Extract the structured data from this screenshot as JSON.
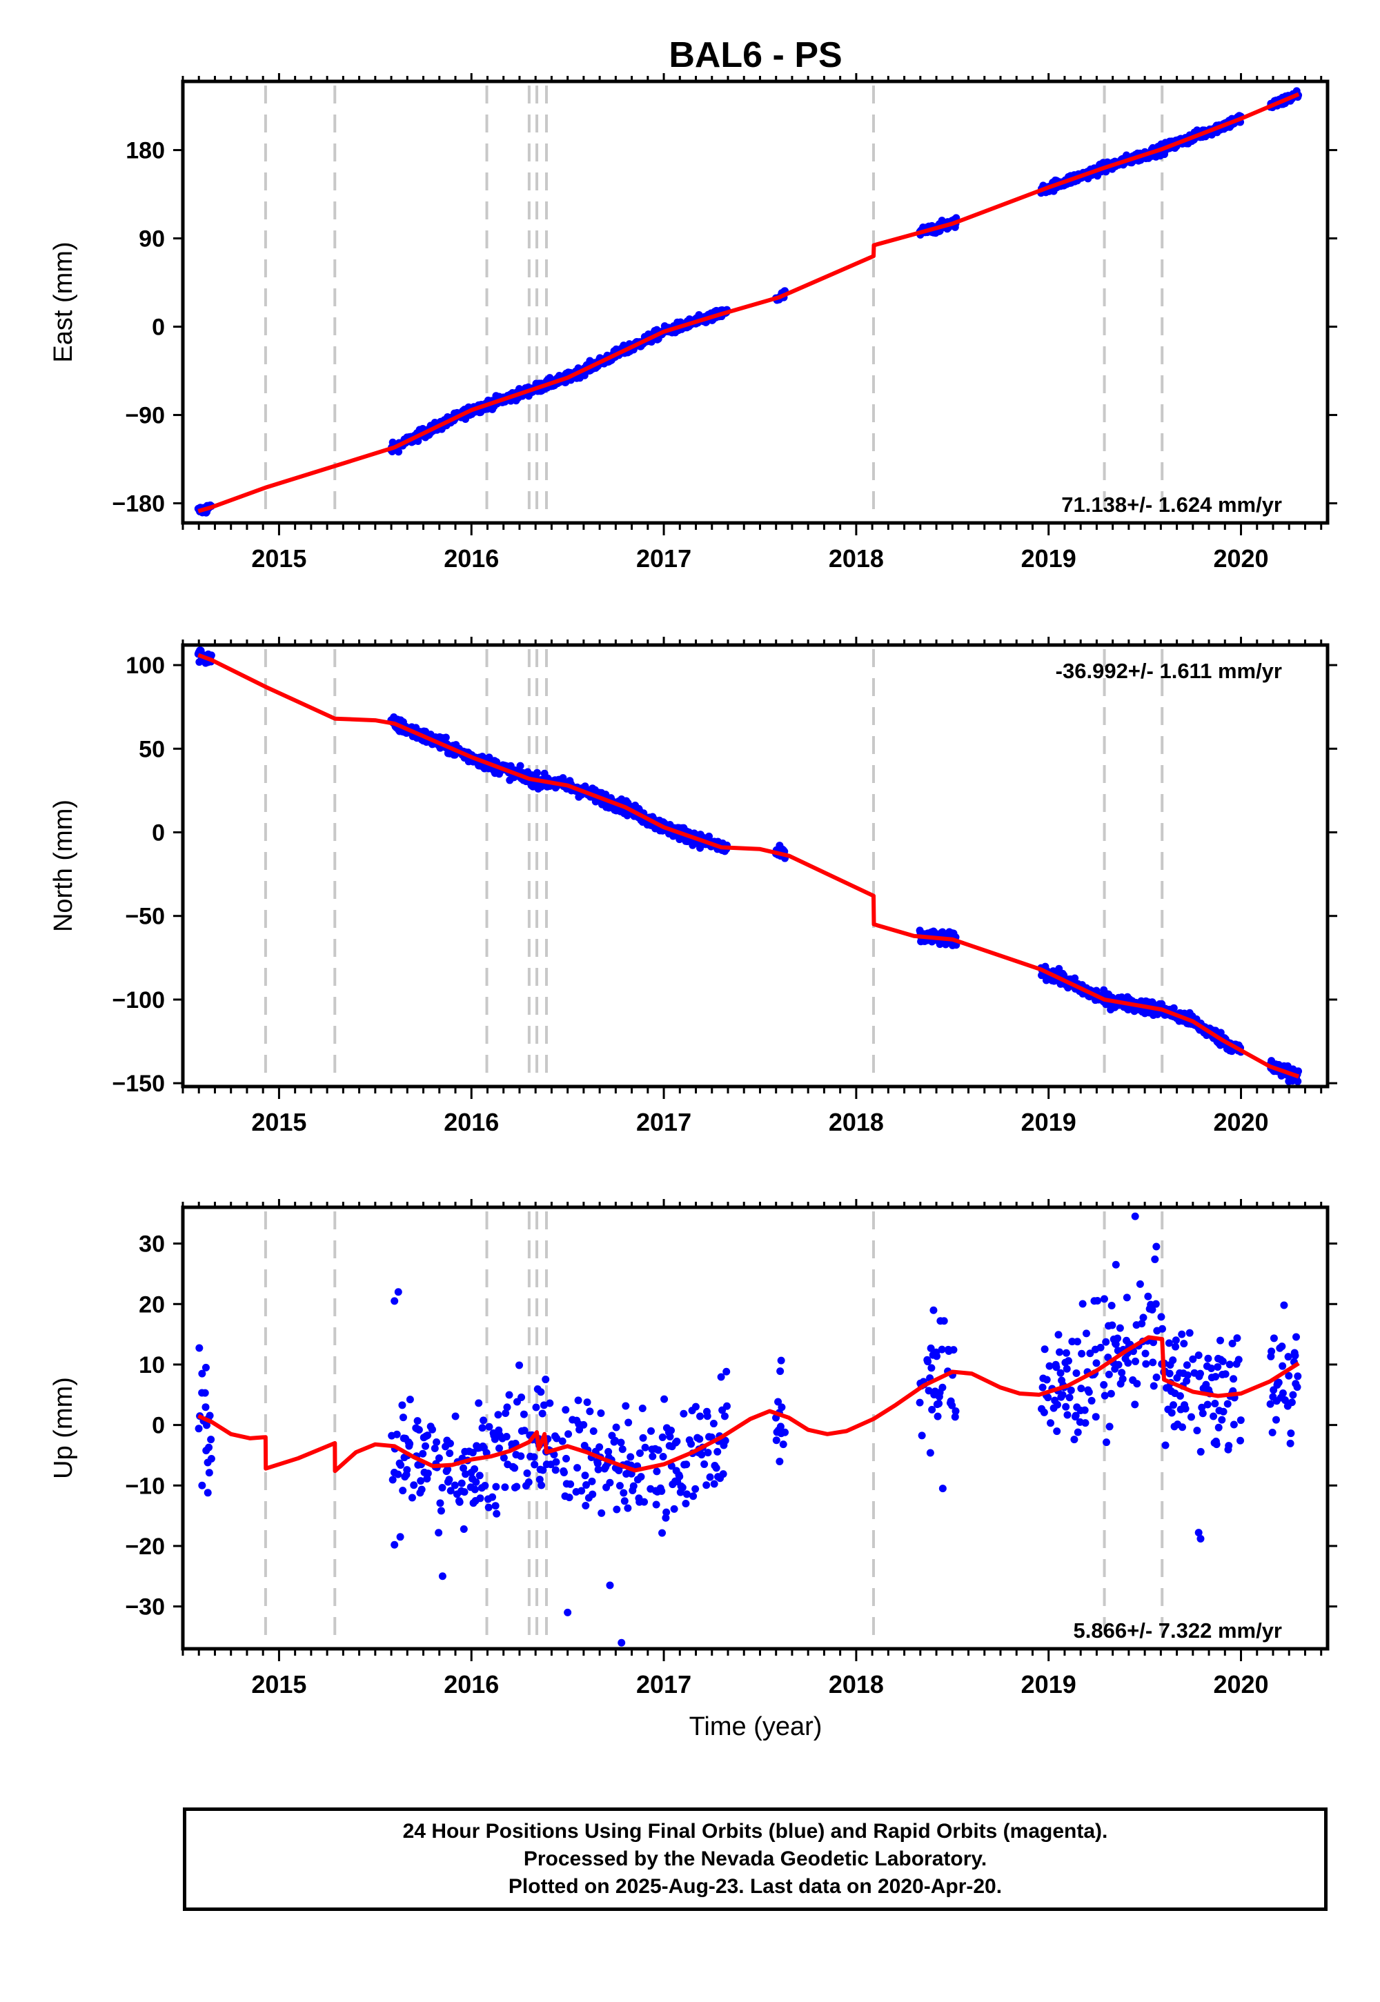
{
  "title": "BAL6 - PS",
  "xlabel": "Time (year)",
  "colors": {
    "final": "#0000ff",
    "model": "#ff0000",
    "events": "#c8c8c8",
    "frame": "#000000"
  },
  "events": [
    2014.93,
    2015.29,
    2016.08,
    2016.3,
    2016.34,
    2016.39,
    2018.09,
    2019.29,
    2019.59
  ],
  "gaps": [
    [
      2014.65,
      2015.58
    ],
    [
      2017.33,
      2017.58
    ],
    [
      2017.63,
      2018.33
    ],
    [
      2018.52,
      2018.96
    ],
    [
      2020.0,
      2020.15
    ]
  ],
  "chart_data": [
    {
      "type": "scatter",
      "component": "east",
      "ylabel": "East (mm)",
      "xlim": [
        2014.5,
        2020.45
      ],
      "ylim": [
        -200,
        250
      ],
      "yticks": [
        -180,
        -90,
        0,
        90,
        180
      ],
      "xticks": [
        2015,
        2016,
        2017,
        2018,
        2019,
        2020
      ],
      "rate_text": "71.138+/- 1.624 mm/yr",
      "rate_position": "bottom-right",
      "model": [
        [
          2014.58,
          -188
        ],
        [
          2014.65,
          -184
        ],
        [
          2014.93,
          -164
        ],
        [
          2015.29,
          -142
        ],
        [
          2015.6,
          -123
        ],
        [
          2016.0,
          -85
        ],
        [
          2016.5,
          -52
        ],
        [
          2017.0,
          -5
        ],
        [
          2017.3,
          13
        ],
        [
          2017.6,
          30
        ],
        [
          2018.09,
          72
        ],
        [
          2018.092,
          83
        ],
        [
          2018.5,
          105
        ],
        [
          2019.0,
          142
        ],
        [
          2019.29,
          162
        ],
        [
          2019.59,
          181
        ],
        [
          2020.0,
          212
        ],
        [
          2020.3,
          237
        ]
      ],
      "model_gaps_filled": [
        [
          2014.58,
          -188
        ],
        [
          2020.3,
          237
        ]
      ],
      "noise_mm": 2.5,
      "outliers": []
    },
    {
      "type": "scatter",
      "component": "north",
      "ylabel": "North (mm)",
      "xlim": [
        2014.5,
        2020.45
      ],
      "ylim": [
        -152,
        112
      ],
      "yticks": [
        -150,
        -100,
        -50,
        0,
        50,
        100
      ],
      "xticks": [
        2015,
        2016,
        2017,
        2018,
        2019,
        2020
      ],
      "rate_text": "-36.992+/- 1.611 mm/yr",
      "rate_position": "top-right",
      "model": [
        [
          2014.58,
          106
        ],
        [
          2014.65,
          103
        ],
        [
          2014.93,
          87
        ],
        [
          2015.29,
          68
        ],
        [
          2015.5,
          67
        ],
        [
          2015.6,
          65
        ],
        [
          2015.8,
          55
        ],
        [
          2016.0,
          45
        ],
        [
          2016.3,
          32
        ],
        [
          2016.5,
          28
        ],
        [
          2016.8,
          15
        ],
        [
          2017.0,
          3
        ],
        [
          2017.3,
          -9
        ],
        [
          2017.5,
          -10
        ],
        [
          2017.65,
          -14
        ],
        [
          2018.09,
          -38
        ],
        [
          2018.092,
          -55
        ],
        [
          2018.3,
          -62
        ],
        [
          2018.5,
          -64
        ],
        [
          2018.96,
          -82
        ],
        [
          2019.29,
          -100
        ],
        [
          2019.59,
          -106
        ],
        [
          2019.75,
          -113
        ],
        [
          2019.9,
          -124
        ],
        [
          2020.15,
          -140
        ],
        [
          2020.3,
          -146
        ]
      ],
      "noise_mm": 2.0,
      "outliers": []
    },
    {
      "type": "scatter",
      "component": "up",
      "ylabel": "Up (mm)",
      "xlim": [
        2014.5,
        2020.45
      ],
      "ylim": [
        -37,
        36
      ],
      "yticks": [
        -30,
        -20,
        -10,
        0,
        10,
        20,
        30
      ],
      "xticks": [
        2015,
        2016,
        2017,
        2018,
        2019,
        2020
      ],
      "rate_text": "5.866+/- 7.322 mm/yr",
      "rate_position": "bottom-right",
      "model": [
        [
          2014.58,
          1.5
        ],
        [
          2014.65,
          0.5
        ],
        [
          2014.75,
          -1.5
        ],
        [
          2014.85,
          -2.2
        ],
        [
          2014.93,
          -2.0
        ],
        [
          2014.931,
          -7.2
        ],
        [
          2015.1,
          -5.5
        ],
        [
          2015.29,
          -3.0
        ],
        [
          2015.291,
          -7.6
        ],
        [
          2015.4,
          -4.5
        ],
        [
          2015.5,
          -3.2
        ],
        [
          2015.6,
          -3.5
        ],
        [
          2015.7,
          -5.3
        ],
        [
          2015.8,
          -6.8
        ],
        [
          2015.9,
          -6.6
        ],
        [
          2016.0,
          -5.7
        ],
        [
          2016.1,
          -5.2
        ],
        [
          2016.2,
          -4.3
        ],
        [
          2016.3,
          -2.8
        ],
        [
          2016.34,
          -1.2
        ],
        [
          2016.35,
          -4.0
        ],
        [
          2016.38,
          -1.5
        ],
        [
          2016.39,
          -4.5
        ],
        [
          2016.5,
          -3.5
        ],
        [
          2016.6,
          -4.5
        ],
        [
          2016.7,
          -5.8
        ],
        [
          2016.85,
          -7.5
        ],
        [
          2017.0,
          -6.5
        ],
        [
          2017.15,
          -4.5
        ],
        [
          2017.3,
          -2.0
        ],
        [
          2017.45,
          1.0
        ],
        [
          2017.55,
          2.3
        ],
        [
          2017.65,
          1.2
        ],
        [
          2017.75,
          -0.8
        ],
        [
          2017.85,
          -1.5
        ],
        [
          2017.95,
          -1.0
        ],
        [
          2018.09,
          1.0
        ],
        [
          2018.2,
          3.2
        ],
        [
          2018.35,
          6.5
        ],
        [
          2018.5,
          8.8
        ],
        [
          2018.6,
          8.5
        ],
        [
          2018.75,
          6.2
        ],
        [
          2018.85,
          5.2
        ],
        [
          2018.95,
          5.0
        ],
        [
          2019.1,
          6.5
        ],
        [
          2019.25,
          9.0
        ],
        [
          2019.4,
          12.2
        ],
        [
          2019.52,
          14.5
        ],
        [
          2019.59,
          14.2
        ],
        [
          2019.6,
          7.5
        ],
        [
          2019.75,
          5.5
        ],
        [
          2019.88,
          4.8
        ],
        [
          2020.0,
          5.2
        ],
        [
          2020.15,
          7.2
        ],
        [
          2020.3,
          10.2
        ]
      ],
      "noise_mm": 5.0,
      "outliers": [
        [
          2014.6,
          -10.0
        ],
        [
          2014.63,
          -11.2
        ],
        [
          2014.6,
          8.5
        ],
        [
          2014.62,
          9.5
        ],
        [
          2015.6,
          20.5
        ],
        [
          2015.62,
          22.0
        ],
        [
          2015.6,
          -19.8
        ],
        [
          2015.63,
          -18.5
        ],
        [
          2015.85,
          -25.0
        ],
        [
          2016.5,
          -31.0
        ],
        [
          2016.78,
          -36.0
        ],
        [
          2016.72,
          -26.5
        ],
        [
          2019.45,
          34.5
        ],
        [
          2019.35,
          26.5
        ],
        [
          2019.56,
          29.5
        ],
        [
          2019.78,
          -17.8
        ],
        [
          2019.79,
          -18.8
        ],
        [
          2018.45,
          -10.5
        ]
      ]
    }
  ],
  "footer": {
    "line1": "24 Hour Positions Using Final Orbits (blue) and Rapid Orbits (magenta).",
    "line2": "Processed by the Nevada Geodetic Laboratory.",
    "line3": "Plotted on 2025-Aug-23. Last data on 2020-Apr-20."
  }
}
